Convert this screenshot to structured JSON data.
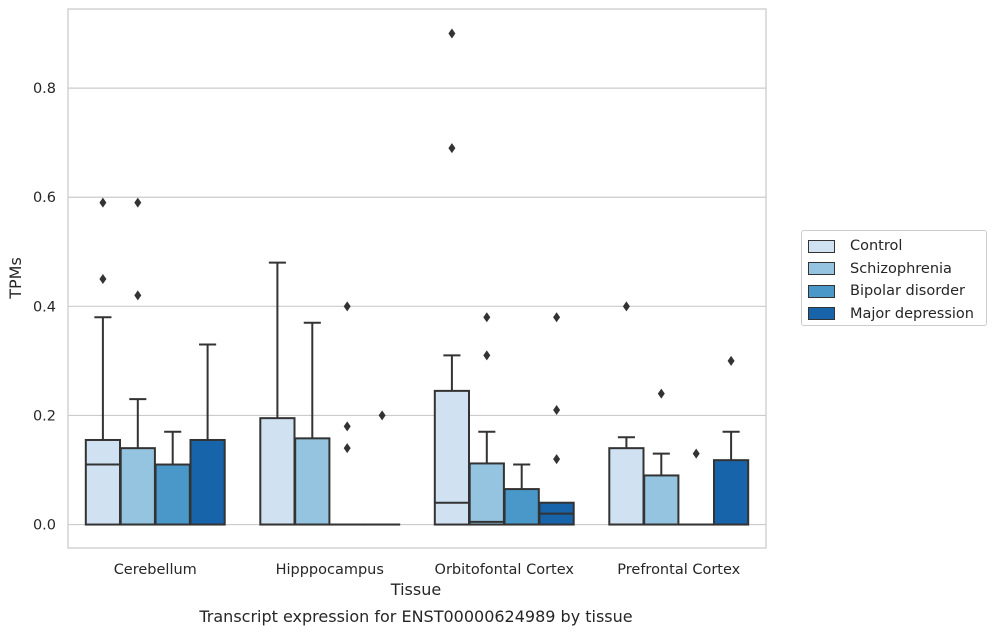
{
  "chart_data": {
    "type": "boxplot",
    "title": "Transcript expression for ENST00000624989 by tissue",
    "xlabel": "Tissue",
    "ylabel": "TPMs",
    "ylim": [
      -0.043,
      0.945
    ],
    "yticks": [
      "0.0",
      "0.2",
      "0.4",
      "0.6",
      "0.8"
    ],
    "grid": "horizontal",
    "legend_position": "right",
    "categories": [
      "Cerebellum",
      "Hipppocampus",
      "Orbitofontal Cortex",
      "Prefrontal Cortex"
    ],
    "series": [
      {
        "name": "Control",
        "color": "#d0e1f2",
        "boxes": [
          {
            "whislo": 0,
            "q1": 0,
            "med": 0.11,
            "q3": 0.155,
            "whishi": 0.38,
            "fliers": [
              0.45,
              0.59
            ]
          },
          {
            "whislo": 0,
            "q1": 0,
            "med": 0,
            "q3": 0.195,
            "whishi": 0.48,
            "fliers": []
          },
          {
            "whislo": 0,
            "q1": 0,
            "med": 0.04,
            "q3": 0.245,
            "whishi": 0.31,
            "fliers": [
              0.69,
              0.9
            ]
          },
          {
            "whislo": 0,
            "q1": 0,
            "med": 0,
            "q3": 0.14,
            "whishi": 0.16,
            "fliers": [
              0.4
            ]
          }
        ]
      },
      {
        "name": "Schizophrenia",
        "color": "#94c4df",
        "boxes": [
          {
            "whislo": 0,
            "q1": 0,
            "med": 0,
            "q3": 0.14,
            "whishi": 0.23,
            "fliers": [
              0.42,
              0.59
            ]
          },
          {
            "whislo": 0,
            "q1": 0,
            "med": 0,
            "q3": 0.158,
            "whishi": 0.37,
            "fliers": []
          },
          {
            "whislo": 0,
            "q1": 0,
            "med": 0.005,
            "q3": 0.112,
            "whishi": 0.17,
            "fliers": [
              0.31,
              0.38
            ]
          },
          {
            "whislo": 0,
            "q1": 0,
            "med": 0,
            "q3": 0.09,
            "whishi": 0.13,
            "fliers": [
              0.24
            ]
          }
        ]
      },
      {
        "name": "Bipolar disorder",
        "color": "#4a98c9",
        "boxes": [
          {
            "whislo": 0,
            "q1": 0,
            "med": 0,
            "q3": 0.11,
            "whishi": 0.17,
            "fliers": []
          },
          {
            "whislo": 0,
            "q1": 0,
            "med": 0,
            "q3": 0,
            "whishi": 0,
            "fliers": [
              0.14,
              0.18,
              0.4
            ]
          },
          {
            "whislo": 0,
            "q1": 0,
            "med": 0,
            "q3": 0.065,
            "whishi": 0.11,
            "fliers": []
          },
          {
            "whislo": 0,
            "q1": 0,
            "med": 0,
            "q3": 0,
            "whishi": 0,
            "fliers": [
              0.13
            ]
          }
        ]
      },
      {
        "name": "Major depression",
        "color": "#1764ab",
        "boxes": [
          {
            "whislo": 0,
            "q1": 0,
            "med": 0,
            "q3": 0.155,
            "whishi": 0.33,
            "fliers": []
          },
          {
            "whislo": 0,
            "q1": 0,
            "med": 0,
            "q3": 0,
            "whishi": 0,
            "fliers": [
              0.2
            ]
          },
          {
            "whislo": 0,
            "q1": 0,
            "med": 0.02,
            "q3": 0.04,
            "whishi": 0.04,
            "fliers": [
              0.12,
              0.21,
              0.38
            ]
          },
          {
            "whislo": 0,
            "q1": 0,
            "med": 0,
            "q3": 0.118,
            "whishi": 0.17,
            "fliers": [
              0.3
            ]
          }
        ]
      }
    ]
  },
  "colors": {
    "grid": "#cccccc",
    "spine": "#cccccc",
    "box_edge": "#333333",
    "flier": "#333333"
  }
}
